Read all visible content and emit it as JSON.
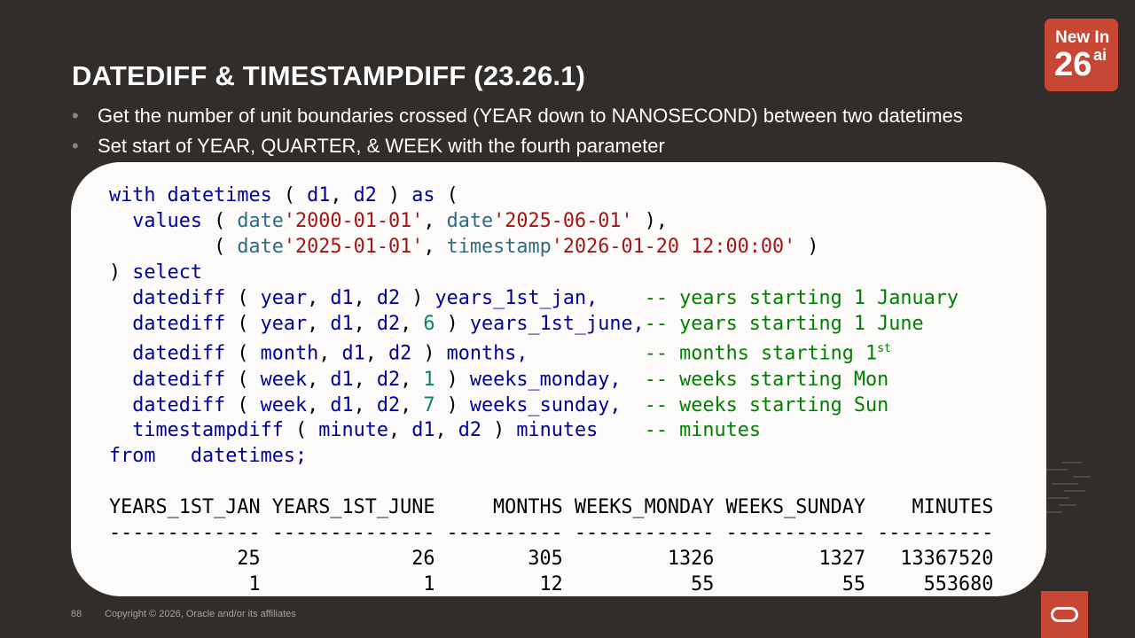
{
  "title": "DATEDIFF & TIMESTAMPDIFF (23.26.1)",
  "badge": {
    "line1": "New In",
    "number": "26",
    "suffix": "ai"
  },
  "bullets": [
    "Get the number of unit boundaries crossed (YEAR down to NANOSECOND) between two datetimes",
    "Set start of YEAR, QUARTER, & WEEK with the fourth parameter"
  ],
  "code": {
    "kw_with": "with",
    "kw_as": "as",
    "kw_values": "values",
    "kw_select": "select",
    "kw_from": "from",
    "cte_name": "datetimes",
    "col_d1": "d1",
    "col_d2": "d2",
    "fn_date": "date",
    "fn_timestamp": "timestamp",
    "lit1": "'2000-01-01'",
    "lit2": "'2025-06-01'",
    "lit3": "'2025-01-01'",
    "lit4": "'2026-01-20 12:00:00'",
    "fn_datediff": "datediff",
    "fn_timestampdiff": "timestampdiff",
    "unit_year": "year",
    "unit_month": "month",
    "unit_week": "week",
    "unit_minute": "minute",
    "n6": "6",
    "n1": "1",
    "n7": "7",
    "alias1": "years_1st_jan,",
    "alias2": "years_1st_june,",
    "alias3": "months,",
    "alias4": "weeks_monday,",
    "alias5": "weeks_sunday,",
    "alias6": "minutes",
    "c1": "-- years starting 1 January",
    "c2": "-- years starting 1 June",
    "c3": "-- months starting 1",
    "c3_sup": "st",
    "c4": "-- weeks starting Mon",
    "c5": "-- weeks starting Sun",
    "c6": "-- minutes",
    "from_target": "datetimes;"
  },
  "result_table": {
    "headers": [
      "YEARS_1ST_JAN",
      "YEARS_1ST_JUNE",
      "MONTHS",
      "WEEKS_MONDAY",
      "WEEKS_SUNDAY",
      "MINUTES"
    ],
    "separator": "------------- -------------- ---------- ------------ ------------ ----------",
    "rows": [
      [
        "25",
        "26",
        "305",
        "1326",
        "1327",
        "13367520"
      ],
      [
        "1",
        "1",
        "12",
        "55",
        "55",
        "553680"
      ]
    ]
  },
  "footer": {
    "page": "88",
    "copyright": "Copyright © 2026, Oracle and/or its affiliates"
  },
  "colors": {
    "background": "#312d2a",
    "accent": "#c74634",
    "code_bg": "#fcfbfa"
  }
}
